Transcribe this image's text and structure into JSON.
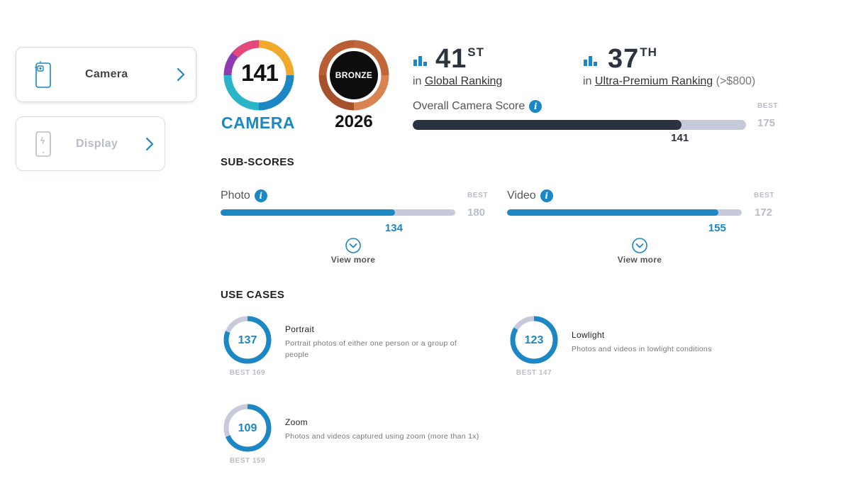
{
  "sidebar": {
    "items": [
      {
        "label": "Camera",
        "icon": "camera-phone-icon",
        "active": true
      },
      {
        "label": "Display",
        "icon": "display-phone-icon",
        "active": false
      }
    ]
  },
  "badge_camera": {
    "score": "141",
    "label": "CAMERA"
  },
  "badge_award": {
    "label": "BRONZE",
    "year": "2026"
  },
  "rankings": {
    "global": {
      "rank": "41",
      "suffix": "ST",
      "prefix": "in",
      "link": "Global Ranking",
      "extra": ""
    },
    "premium": {
      "rank": "37",
      "suffix": "TH",
      "prefix": "in",
      "link": "Ultra-Premium Ranking",
      "extra": "(>$800)"
    }
  },
  "overall": {
    "label": "Overall Camera Score",
    "score": 141,
    "best": 175,
    "best_label": "BEST"
  },
  "subscores": {
    "title": "SUB-SCORES",
    "photo": {
      "label": "Photo",
      "score": 134,
      "best": 180,
      "best_label": "BEST",
      "view_more": "View more"
    },
    "video": {
      "label": "Video",
      "score": 155,
      "best": 172,
      "best_label": "BEST",
      "view_more": "View more"
    }
  },
  "use_cases": {
    "title": "USE CASES",
    "items": [
      {
        "name": "Portrait",
        "score": 137,
        "best": 169,
        "best_text": "BEST 169",
        "desc": "Portrait photos of either one person or a group of people"
      },
      {
        "name": "Lowlight",
        "score": 123,
        "best": 147,
        "best_text": "BEST 147",
        "desc": "Photos and videos in lowlight conditions"
      },
      {
        "name": "Zoom",
        "score": 109,
        "best": 159,
        "best_text": "BEST 159",
        "desc": "Photos and videos captured using zoom (more than 1x)"
      }
    ]
  },
  "info_glyph": "i",
  "colors": {
    "accent": "#1b87c4",
    "dark": "#2b3240",
    "track": "#c6cadb",
    "bronze": "#c0673a"
  }
}
